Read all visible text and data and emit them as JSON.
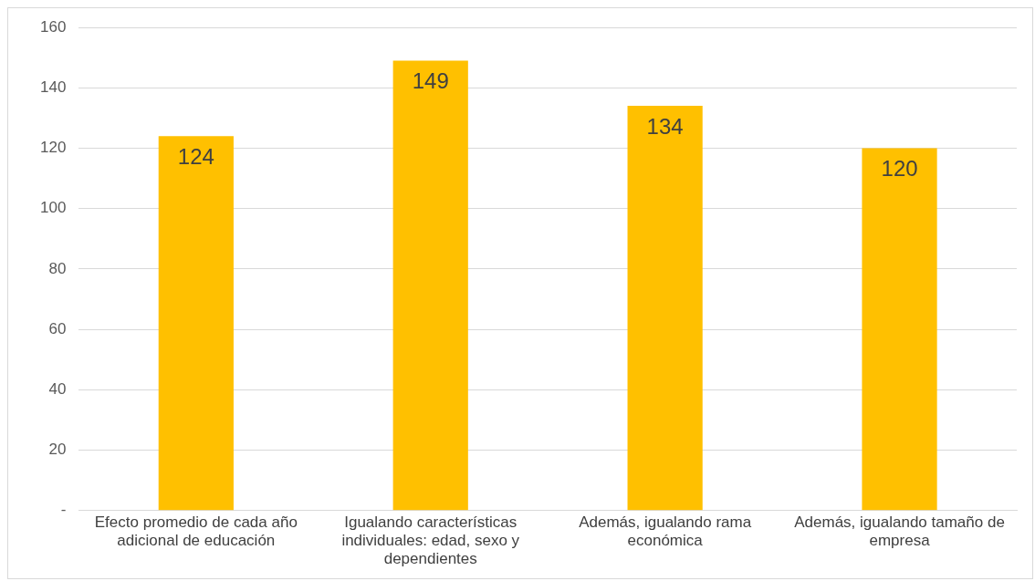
{
  "chart_data": {
    "type": "bar",
    "categories": [
      "Efecto promedio de cada año adicional de educación",
      "Igualando características individuales: edad, sexo y dependientes",
      "Además, igualando rama económica",
      "Además, igualando tamaño de empresa"
    ],
    "values": [
      124,
      149,
      134,
      120
    ],
    "color": "#ffc000",
    "ylim": [
      0,
      160
    ],
    "yticks": [
      {
        "value": 0,
        "label": "-"
      },
      20,
      40,
      60,
      80,
      100,
      120,
      140,
      160
    ],
    "grid": "y",
    "data_labels": true
  }
}
